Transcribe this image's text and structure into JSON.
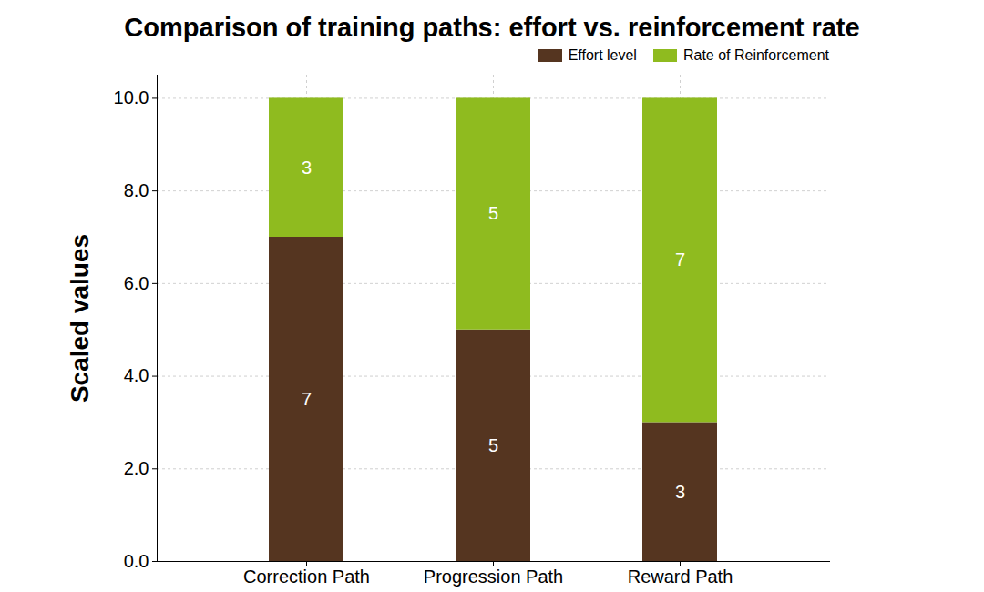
{
  "chart_data": {
    "type": "bar",
    "title": "Comparison of training paths: effort vs. reinforcement rate",
    "y_label": "Scaled values",
    "categories": [
      "Correction Path",
      "Progression Path",
      "Reward Path"
    ],
    "series": [
      {
        "name": "Effort level",
        "color": "#553520",
        "values": [
          7,
          5,
          3
        ]
      },
      {
        "name": "Rate of Reinforcement",
        "color": "#8fbb1f",
        "values": [
          3,
          5,
          7
        ]
      }
    ],
    "ylim": [
      0,
      10.5
    ],
    "yticks": [
      0,
      2,
      4,
      6,
      8,
      10
    ],
    "stacked": true,
    "data_labels": true,
    "grid": true,
    "legend": "upper right"
  }
}
